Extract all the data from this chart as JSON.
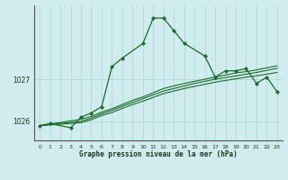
{
  "title": "Graphe pression niveau de la mer (hPa)",
  "background_color": "#d0ecee",
  "grid_color": "#b0d8dc",
  "line_color": "#1a6b2a",
  "xlim": [
    -0.5,
    23.5
  ],
  "ylim": [
    1025.55,
    1028.75
  ],
  "yticks": [
    1026,
    1027
  ],
  "xticks": [
    0,
    1,
    2,
    3,
    4,
    5,
    6,
    7,
    8,
    9,
    10,
    11,
    12,
    13,
    14,
    15,
    16,
    17,
    18,
    19,
    20,
    21,
    22,
    23
  ],
  "series1": [
    1025.9,
    1025.95,
    null,
    1025.85,
    1026.1,
    1026.2,
    1026.35,
    1027.3,
    1027.5,
    null,
    1027.85,
    1028.45,
    1028.45,
    1028.15,
    1027.85,
    null,
    1027.55,
    1027.05,
    1027.2,
    1027.2,
    1027.25,
    1026.9,
    1027.05,
    1026.7
  ],
  "series2": [
    1025.9,
    null,
    null,
    null,
    1026.05,
    1026.12,
    1026.22,
    1026.3,
    1026.4,
    1026.5,
    1026.58,
    1026.68,
    1026.78,
    1026.84,
    1026.9,
    1026.95,
    1027.0,
    1027.05,
    1027.1,
    1027.15,
    1027.18,
    1027.22,
    1027.27,
    1027.32
  ],
  "series3": [
    1025.9,
    null,
    null,
    null,
    1026.0,
    1026.08,
    1026.18,
    1026.26,
    1026.36,
    1026.45,
    1026.54,
    1026.63,
    1026.72,
    1026.78,
    1026.84,
    1026.9,
    1026.95,
    1027.0,
    1027.04,
    1027.08,
    1027.12,
    1027.16,
    1027.21,
    1027.26
  ],
  "series4": [
    1025.9,
    null,
    null,
    null,
    1025.97,
    1026.04,
    1026.14,
    1026.21,
    1026.31,
    1026.4,
    1026.48,
    1026.57,
    1026.66,
    1026.72,
    1026.78,
    1026.83,
    1026.88,
    1026.93,
    1026.97,
    1027.01,
    1027.05,
    1027.08,
    1027.12,
    1027.16
  ]
}
